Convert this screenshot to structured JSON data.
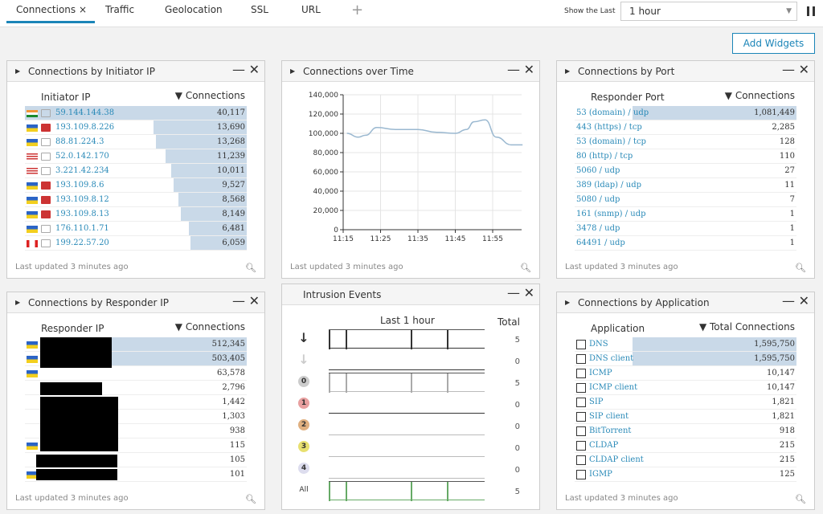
{
  "tabs": [
    {
      "label": "Connections",
      "active": true
    },
    {
      "label": "Traffic"
    },
    {
      "label": "Geolocation"
    },
    {
      "label": "SSL"
    },
    {
      "label": "URL"
    }
  ],
  "add_tab": "+",
  "close_tab": "×",
  "show_last_label": "Show the Last",
  "show_last_value": "1 hour",
  "add_widgets": "Add Widgets",
  "footer": "Last updated 3 minutes ago",
  "initiator": {
    "title": "Connections by Initiator IP",
    "col1": "Initiator IP",
    "col2": "▼ Connections",
    "rows": [
      {
        "ip": "59.144.144.38",
        "val": "40,117",
        "n": 40117,
        "flag": "in",
        "host": "gray"
      },
      {
        "ip": "193.109.8.226",
        "val": "13,690",
        "n": 13690,
        "flag": "ua",
        "host": "red"
      },
      {
        "ip": "88.81.224.3",
        "val": "13,268",
        "n": 13268,
        "flag": "ua",
        "host": "gray"
      },
      {
        "ip": "52.0.142.170",
        "val": "11,239",
        "n": 11239,
        "flag": "us",
        "host": "gray"
      },
      {
        "ip": "3.221.42.234",
        "val": "10,011",
        "n": 10011,
        "flag": "us",
        "host": "gray"
      },
      {
        "ip": "193.109.8.6",
        "val": "9,527",
        "n": 9527,
        "flag": "ua",
        "host": "red"
      },
      {
        "ip": "193.109.8.12",
        "val": "8,568",
        "n": 8568,
        "flag": "ua",
        "host": "red"
      },
      {
        "ip": "193.109.8.13",
        "val": "8,149",
        "n": 8149,
        "flag": "ua",
        "host": "red"
      },
      {
        "ip": "176.110.1.71",
        "val": "6,481",
        "n": 6481,
        "flag": "ua",
        "host": "gray"
      },
      {
        "ip": "199.22.57.20",
        "val": "6,059",
        "n": 6059,
        "flag": "ca",
        "host": "gray"
      }
    ]
  },
  "time": {
    "title": "Connections over Time",
    "chart_data": {
      "type": "line",
      "xlabel": "",
      "ylabel": "",
      "ylim": [
        0,
        140000
      ],
      "yticks": [
        "0",
        "20,000",
        "40,000",
        "60,000",
        "80,000",
        "100,000",
        "120,000",
        "140,000"
      ],
      "xticks": [
        "11:15",
        "11:25",
        "11:35",
        "11:45",
        "11:55"
      ],
      "x": [
        "11:16",
        "11:19",
        "11:21",
        "11:24",
        "11:29",
        "11:35",
        "11:40",
        "11:45",
        "11:48",
        "11:50",
        "11:53",
        "11:56",
        "12:00",
        "12:03"
      ],
      "values": [
        100000,
        96000,
        98000,
        106000,
        104000,
        104000,
        101000,
        100000,
        104000,
        112000,
        114000,
        96000,
        88000,
        88000
      ]
    }
  },
  "port": {
    "title": "Connections by Port",
    "col1": "Responder Port",
    "col2": "▼ Connections",
    "rows": [
      {
        "l": "53 (domain) / udp",
        "v": "1,081,449",
        "n": 1081449
      },
      {
        "l": "443 (https) / tcp",
        "v": "2,285",
        "n": 2285
      },
      {
        "l": "53 (domain) / tcp",
        "v": "128",
        "n": 128
      },
      {
        "l": "80 (http) / tcp",
        "v": "110",
        "n": 110
      },
      {
        "l": "5060 / udp",
        "v": "27",
        "n": 27
      },
      {
        "l": "389 (ldap) / udp",
        "v": "11",
        "n": 11
      },
      {
        "l": "5080 / udp",
        "v": "7",
        "n": 7
      },
      {
        "l": "161 (snmp) / udp",
        "v": "1",
        "n": 1
      },
      {
        "l": "3478 / udp",
        "v": "1",
        "n": 1
      },
      {
        "l": "64491 / udp",
        "v": "1",
        "n": 1
      }
    ]
  },
  "responder": {
    "title": "Connections by Responder IP",
    "col1": "Responder IP",
    "col2": "▼ Connections",
    "rows": [
      {
        "v": "512,345",
        "n": 512345,
        "flag": "ua"
      },
      {
        "v": "503,405",
        "n": 503405,
        "flag": "ua"
      },
      {
        "v": "63,578",
        "n": 63578,
        "flag": "ua"
      },
      {
        "v": "2,796",
        "n": 2796
      },
      {
        "v": "1,442",
        "n": 1442
      },
      {
        "v": "1,303",
        "n": 1303
      },
      {
        "v": "938",
        "n": 938
      },
      {
        "v": "115",
        "n": 115,
        "flag": "ua"
      },
      {
        "v": "105",
        "n": 105
      },
      {
        "v": "101",
        "n": 101,
        "flag": "ua"
      }
    ]
  },
  "intrusion": {
    "title": "Intrusion Events",
    "col1": "Last 1 hour",
    "col2": "Total",
    "rows": [
      {
        "icon": "block-arrow-icon",
        "label": "↓",
        "total": "5",
        "spikes": true,
        "color": "#333"
      },
      {
        "icon": "would-block-arrow-icon",
        "label": "↓",
        "total": "0",
        "color": "#ccc"
      },
      {
        "icon": "priority-0-icon",
        "label": "0",
        "total": "5",
        "spikes": true,
        "color": "#ccc"
      },
      {
        "icon": "priority-1-icon",
        "label": "1",
        "total": "0",
        "color": "#e8a0a0"
      },
      {
        "icon": "priority-2-icon",
        "label": "2",
        "total": "0",
        "color": "#e0b080"
      },
      {
        "icon": "priority-3-icon",
        "label": "3",
        "total": "0",
        "color": "#e8e070"
      },
      {
        "icon": "priority-4-icon",
        "label": "4",
        "total": "0",
        "color": "#dde"
      },
      {
        "icon": "all-label",
        "label": "All",
        "total": "5",
        "spikes": true,
        "color": "none"
      }
    ]
  },
  "application": {
    "title": "Connections by Application",
    "col1": "Application",
    "col2": "▼ Total Connections",
    "rows": [
      {
        "l": "DNS",
        "v": "1,595,750",
        "n": 1595750
      },
      {
        "l": "DNS client",
        "v": "1,595,750",
        "n": 1595750
      },
      {
        "l": "ICMP",
        "v": "10,147",
        "n": 10147
      },
      {
        "l": "ICMP client",
        "v": "10,147",
        "n": 10147
      },
      {
        "l": "SIP",
        "v": "1,821",
        "n": 1821
      },
      {
        "l": "SIP client",
        "v": "1,821",
        "n": 1821
      },
      {
        "l": "BitTorrent",
        "v": "918",
        "n": 918
      },
      {
        "l": "CLDAP",
        "v": "215",
        "n": 215
      },
      {
        "l": "CLDAP client",
        "v": "215",
        "n": 215
      },
      {
        "l": "IGMP",
        "v": "125",
        "n": 125
      }
    ]
  }
}
